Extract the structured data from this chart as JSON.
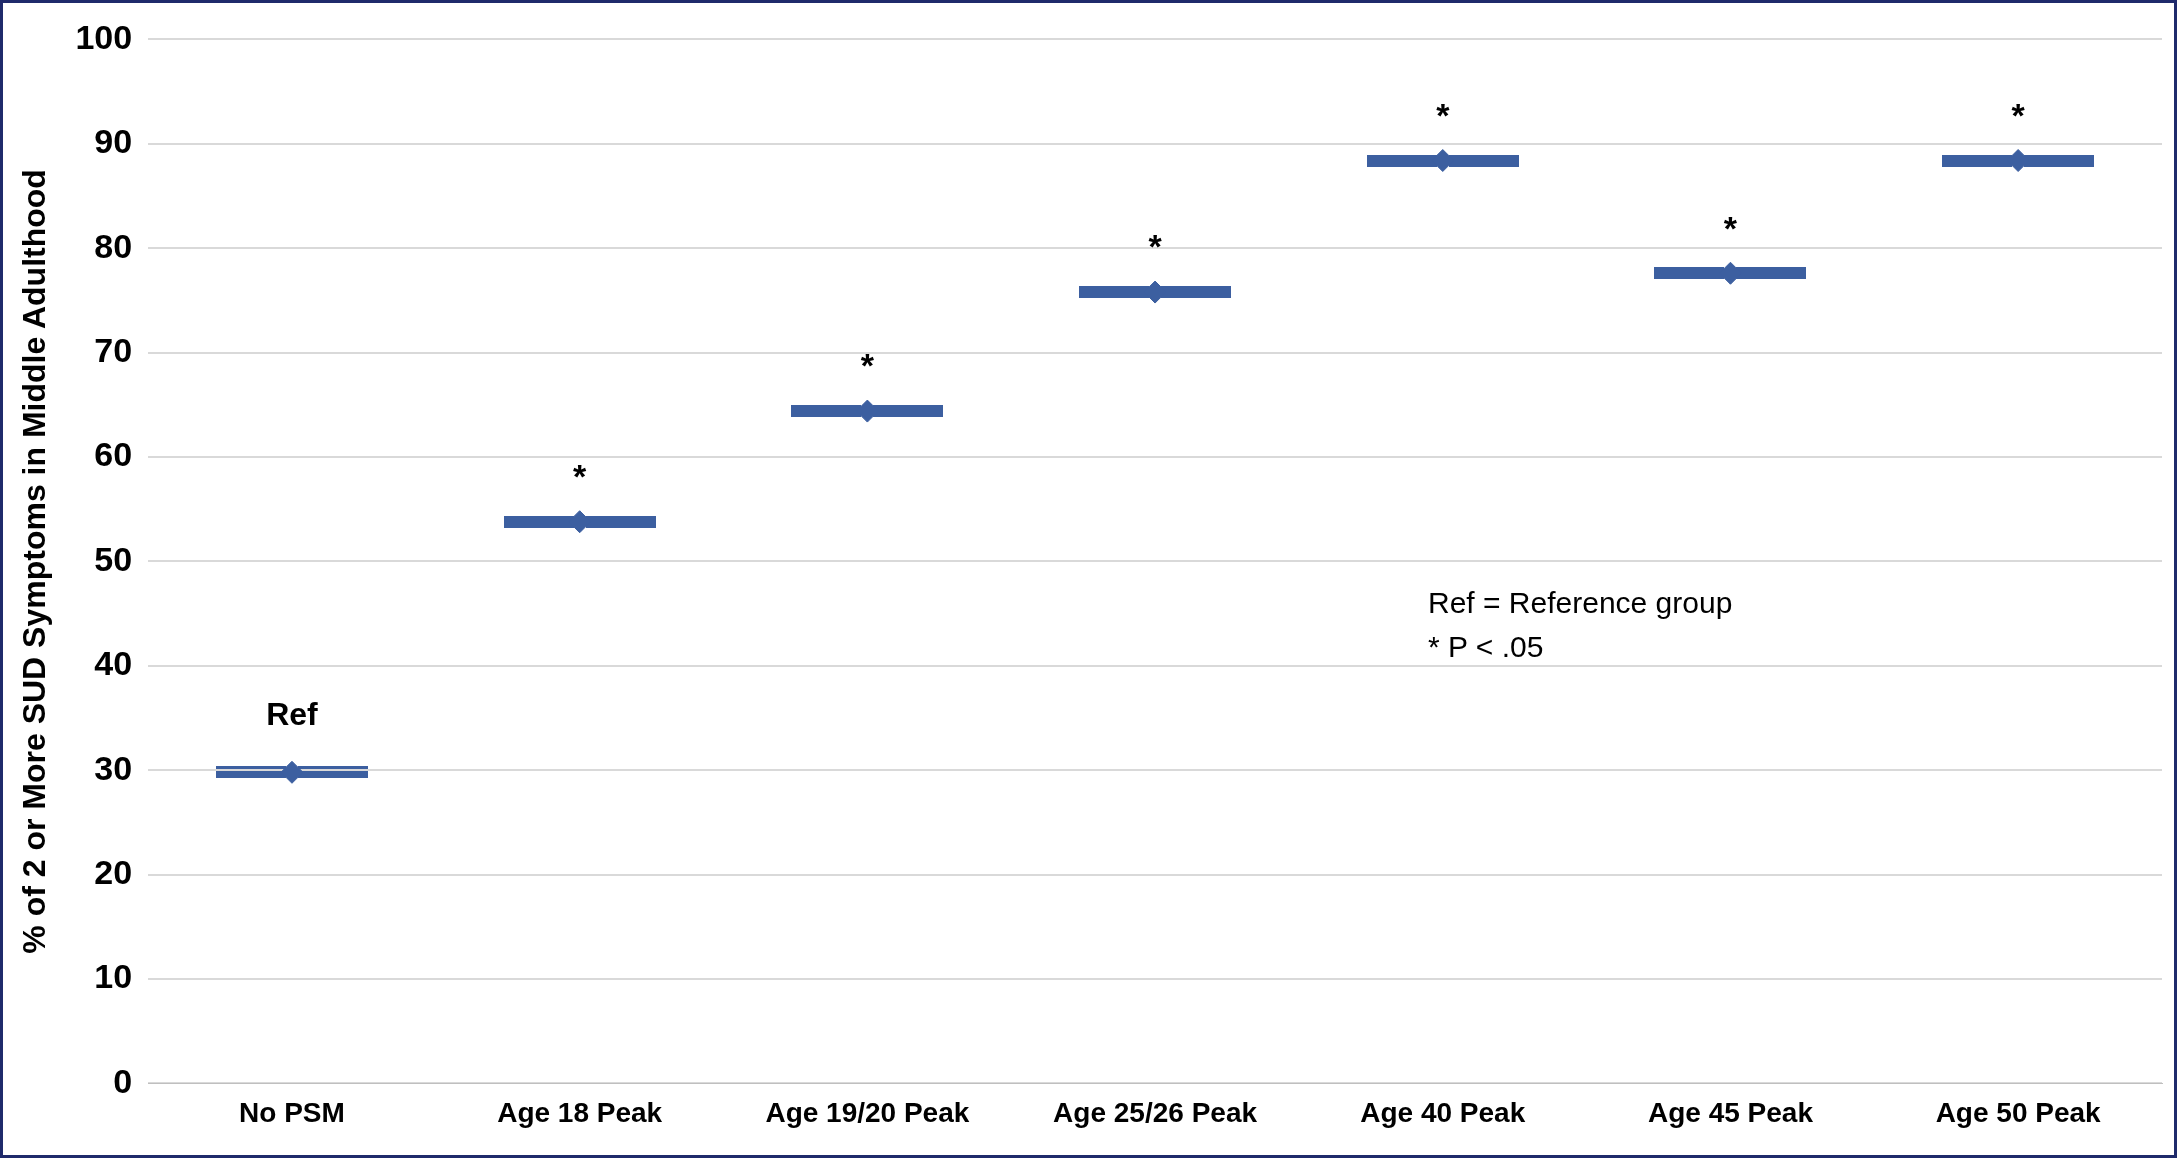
{
  "chart_data": {
    "type": "scatter",
    "ylabel": "% of 2 or More SUD Symptoms in Middle Adulthood",
    "categories": [
      "No PSM",
      "Age 18 Peak",
      "Age 19/20 Peak",
      "Age 25/26 Peak",
      "Age 40 Peak",
      "Age 45 Peak",
      "Age 50 Peak"
    ],
    "series": [
      {
        "color": "#3c5fa0",
        "values": [
          29.8,
          53.8,
          64.4,
          75.8,
          88.4,
          77.6,
          88.4
        ]
      }
    ],
    "ylim": [
      0,
      100
    ],
    "yticks": [
      0,
      10,
      20,
      30,
      40,
      50,
      60,
      70,
      80,
      90,
      100
    ],
    "grid": "y",
    "legend": false,
    "marker": "diamond",
    "annotations": [
      {
        "text": "Ref",
        "x": "No PSM",
        "y": 29.8
      },
      {
        "text": "*",
        "x": "Age 18 Peak",
        "y": 53.8
      },
      {
        "text": "*",
        "x": "Age 19/20 Peak",
        "y": 64.4
      },
      {
        "text": "*",
        "x": "Age 25/26 Peak",
        "y": 75.8
      },
      {
        "text": "*",
        "x": "Age 40 Peak",
        "y": 88.4
      },
      {
        "text": "*",
        "x": "Age 45 Peak",
        "y": 77.6
      },
      {
        "text": "*",
        "x": "Age 50 Peak",
        "y": 88.4
      },
      "Ref = Reference group",
      "* P < .05"
    ]
  }
}
